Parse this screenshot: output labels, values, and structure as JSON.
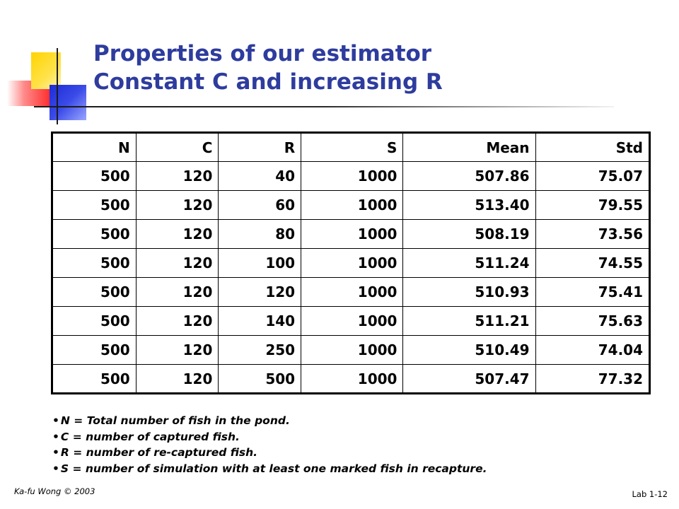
{
  "title": {
    "line1": "Properties of our estimator",
    "line2": "Constant C and increasing R"
  },
  "table": {
    "headers": [
      "N",
      "C",
      "R",
      "S",
      "Mean",
      "Std"
    ],
    "rows": [
      [
        "500",
        "120",
        "40",
        "1000",
        "507.86",
        "75.07"
      ],
      [
        "500",
        "120",
        "60",
        "1000",
        "513.40",
        "79.55"
      ],
      [
        "500",
        "120",
        "80",
        "1000",
        "508.19",
        "73.56"
      ],
      [
        "500",
        "120",
        "100",
        "1000",
        "511.24",
        "74.55"
      ],
      [
        "500",
        "120",
        "120",
        "1000",
        "510.93",
        "75.41"
      ],
      [
        "500",
        "120",
        "140",
        "1000",
        "511.21",
        "75.63"
      ],
      [
        "500",
        "120",
        "250",
        "1000",
        "510.49",
        "74.04"
      ],
      [
        "500",
        "120",
        "500",
        "1000",
        "507.47",
        "77.32"
      ]
    ]
  },
  "notes": [
    "N = Total number of fish in the pond.",
    "C = number of captured fish.",
    "R = number of re-captured fish.",
    "S = number of simulation with at least one marked fish in recapture."
  ],
  "footer": {
    "left": "Ka-fu Wong © 2003",
    "right": "Lab 1-12"
  },
  "colors": {
    "title": "#2e3c9e",
    "deco_yellow": "#ffd400",
    "deco_blue": "#1c2bd6",
    "deco_red": "#ff3030"
  }
}
